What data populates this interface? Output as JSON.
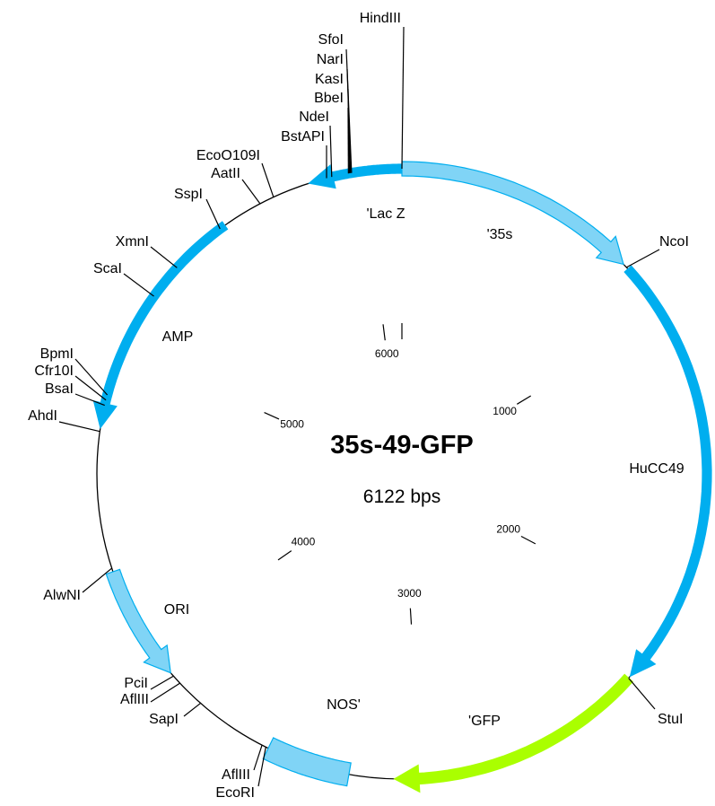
{
  "title": "35s-49-GFP",
  "size": {
    "value": 6122,
    "label": "6122 bps"
  },
  "ticks": [
    1000,
    2000,
    3000,
    4000,
    5000,
    6000
  ],
  "features": [
    "'Lac Z",
    "'35s",
    "HuCC49",
    "'GFP",
    "NOS'",
    "ORI",
    "AMP"
  ],
  "sites": [
    "HindIII",
    "SfoI",
    "NarI",
    "KasI",
    "BbeI",
    "NdeI",
    "BstAPI",
    "EcoO109I",
    "AatII",
    "SspI",
    "XmnI",
    "ScaI",
    "BpmI",
    "Cfr10I",
    "BsaI",
    "AhdI",
    "AlwNI",
    "PciI",
    "AflIII",
    "SapI",
    "AflIII",
    "EcoRI",
    "NcoI",
    "StuI"
  ]
}
